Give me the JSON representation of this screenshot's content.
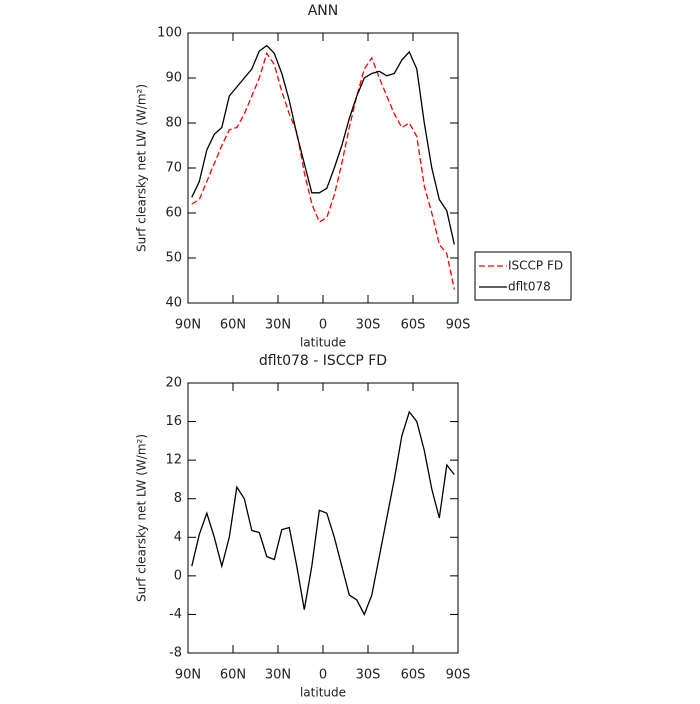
{
  "chart_data": [
    {
      "type": "line",
      "title": "ANN",
      "xlabel": "latitude",
      "ylabel": "Surf clearsky net LW (W/m²)",
      "x": [
        87.5,
        82.5,
        77.5,
        72.5,
        67.5,
        62.5,
        57.5,
        52.5,
        47.5,
        42.5,
        37.5,
        32.5,
        27.5,
        22.5,
        17.5,
        12.5,
        7.5,
        2.5,
        -2.5,
        -7.5,
        -12.5,
        -17.5,
        -22.5,
        -27.5,
        -32.5,
        -37.5,
        -42.5,
        -47.5,
        -52.5,
        -57.5,
        -62.5,
        -67.5,
        -72.5,
        -77.5,
        -82.5,
        -87.5
      ],
      "series": [
        {
          "name": "ISCCP FD",
          "color": "#ff0000",
          "dash": true,
          "values": [
            62,
            63,
            67,
            71,
            75,
            78.5,
            79,
            82,
            86,
            90,
            95.5,
            93,
            87,
            82,
            78,
            69,
            62,
            58,
            59,
            64,
            71,
            79,
            86,
            92,
            94.5,
            90,
            86,
            82,
            79,
            80,
            77,
            66,
            60,
            53,
            51,
            43
          ]
        },
        {
          "name": "dflt078",
          "color": "#000000",
          "dash": false,
          "values": [
            63.5,
            67,
            74,
            77.5,
            79,
            86,
            88,
            90,
            92,
            96,
            97.2,
            95.5,
            91,
            85,
            77.5,
            71,
            64.5,
            64.5,
            65.5,
            70,
            75,
            81,
            86,
            90,
            91,
            91.5,
            90.5,
            91,
            94,
            95.8,
            92,
            80,
            70,
            63,
            60.5,
            53
          ]
        }
      ],
      "xlim": [
        90,
        -90
      ],
      "xticks": [
        {
          "value": 90,
          "label": "90N"
        },
        {
          "value": 60,
          "label": "60N"
        },
        {
          "value": 30,
          "label": "30N"
        },
        0,
        {
          "value": -30,
          "label": "30S"
        },
        {
          "value": -60,
          "label": "60S"
        },
        {
          "value": -90,
          "label": "90S"
        }
      ],
      "ylim": [
        40,
        100
      ],
      "yticks": [
        40,
        50,
        60,
        70,
        80,
        90,
        100
      ],
      "legend": "right-outside"
    },
    {
      "type": "line",
      "title": "dflt078 - ISCCP FD",
      "xlabel": "latitude",
      "ylabel": "Surf clearsky net LW (W/m²)",
      "x": [
        87.5,
        82.5,
        77.5,
        72.5,
        67.5,
        62.5,
        57.5,
        52.5,
        47.5,
        42.5,
        37.5,
        32.5,
        27.5,
        22.5,
        17.5,
        12.5,
        7.5,
        2.5,
        -2.5,
        -7.5,
        -12.5,
        -17.5,
        -22.5,
        -27.5,
        -32.5,
        -37.5,
        -42.5,
        -47.5,
        -52.5,
        -57.5,
        -62.5,
        -67.5,
        -72.5,
        -77.5,
        -82.5,
        -87.5
      ],
      "values": [
        1,
        4.3,
        6.5,
        4,
        1,
        4,
        9.2,
        8,
        4.7,
        4.5,
        2,
        1.7,
        4.8,
        5,
        1,
        -3.5,
        1,
        6.8,
        6.5,
        4,
        1,
        -2,
        -2.5,
        -4,
        -2,
        2,
        6,
        10,
        14.5,
        17,
        16,
        13,
        9,
        6,
        11.5,
        10.5
      ],
      "color": "#000000",
      "xlim": [
        90,
        -90
      ],
      "xticks": [
        {
          "value": 90,
          "label": "90N"
        },
        {
          "value": 60,
          "label": "60N"
        },
        {
          "value": 30,
          "label": "30N"
        },
        0,
        {
          "value": -30,
          "label": "30S"
        },
        {
          "value": -60,
          "label": "60S"
        },
        {
          "value": -90,
          "label": "90S"
        }
      ],
      "ylim": [
        -8,
        20
      ],
      "yticks": [
        -8,
        -4,
        0,
        4,
        8,
        12,
        16,
        20
      ]
    }
  ]
}
